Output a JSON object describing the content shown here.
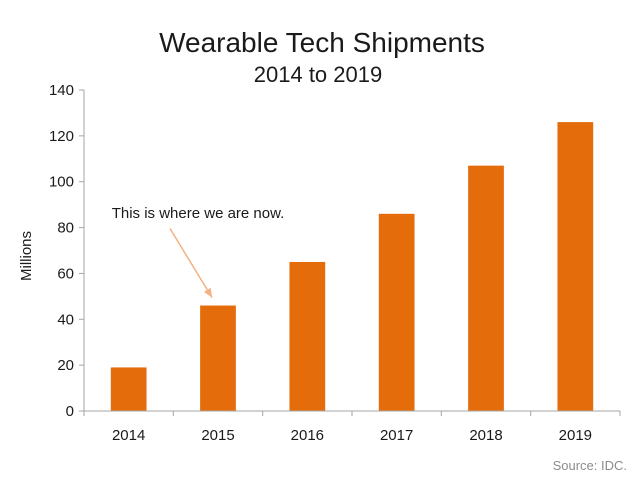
{
  "chart_data": {
    "type": "bar",
    "title": "Wearable Tech Shipments",
    "subtitle": "2014 to 2019",
    "ylabel": "Millions",
    "categories": [
      "2014",
      "2015",
      "2016",
      "2017",
      "2018",
      "2019"
    ],
    "values": [
      19,
      46,
      65,
      86,
      107,
      126
    ],
    "ylim": [
      0,
      140
    ],
    "yticks": [
      0,
      20,
      40,
      60,
      80,
      100,
      120,
      140
    ],
    "grid": false,
    "bar_color": "#E46C0A",
    "annotation": {
      "text": "This is where we are now.",
      "points_to": "2015",
      "arrow_color": "#F4B183"
    },
    "source": "Source: IDC."
  }
}
